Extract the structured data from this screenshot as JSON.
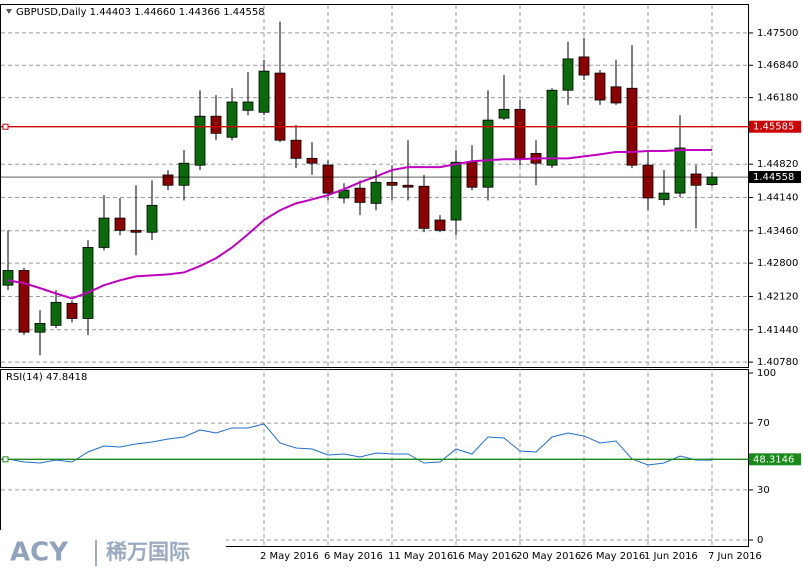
{
  "chart_data": [
    {
      "type": "candlestick",
      "title": "GBPUSD,Daily  1.44403 1.44660 1.44366 1.44558",
      "categories": [
        null,
        null,
        null,
        null,
        null,
        null,
        null,
        null,
        null,
        null,
        null,
        null,
        null,
        null,
        null,
        null,
        "2 May 2016",
        null,
        null,
        null,
        "6 May 2016",
        null,
        null,
        null,
        "11 May 2016",
        null,
        null,
        null,
        "16 May 2016",
        null,
        null,
        null,
        "20 May 2016",
        null,
        null,
        null,
        "26 May 2016",
        null,
        null,
        null,
        "1 Jun 2016",
        null,
        null,
        null,
        "7 Jun 2016"
      ],
      "open": [
        1.4235,
        1.4265,
        1.4139,
        1.4153,
        1.4198,
        1.4167,
        1.4312,
        1.4372,
        1.4347,
        1.4343,
        1.446,
        1.4439,
        1.448,
        1.458,
        1.4537,
        1.4592,
        1.4588,
        1.4668,
        1.4531,
        1.4494,
        1.448,
        1.4413,
        1.4433,
        1.4402,
        1.4445,
        1.4439,
        1.4437,
        1.4368,
        1.4368,
        1.4486,
        1.4435,
        1.4576,
        1.4594,
        1.4504,
        1.448,
        1.4633,
        1.4701,
        1.4668,
        1.464,
        1.4637,
        1.448,
        1.441,
        1.4423,
        1.4462,
        1.44403
      ],
      "high": [
        1.4347,
        1.427,
        1.4184,
        1.4225,
        1.4204,
        1.4327,
        1.4419,
        1.4413,
        1.4439,
        1.4449,
        1.447,
        1.4511,
        1.4633,
        1.4623,
        1.4637,
        1.467,
        1.4695,
        1.4773,
        1.4562,
        1.4527,
        1.449,
        1.4443,
        1.4449,
        1.447,
        1.448,
        1.4531,
        1.446,
        1.4378,
        1.4511,
        1.4521,
        1.4633,
        1.4664,
        1.4613,
        1.4531,
        1.4637,
        1.4732,
        1.474,
        1.4674,
        1.4695,
        1.4725,
        1.4511,
        1.447,
        1.4582,
        1.448,
        1.4466
      ],
      "low": [
        1.4225,
        1.4133,
        1.4092,
        1.4147,
        1.4159,
        1.4133,
        1.4306,
        1.4337,
        1.4296,
        1.4327,
        1.4429,
        1.4408,
        1.447,
        1.4531,
        1.4531,
        1.4582,
        1.4582,
        1.4527,
        1.4474,
        1.446,
        1.4408,
        1.4402,
        1.4378,
        1.4388,
        1.4408,
        1.4408,
        1.4343,
        1.4343,
        1.4337,
        1.4429,
        1.4408,
        1.4572,
        1.448,
        1.4439,
        1.4474,
        1.4603,
        1.4654,
        1.4603,
        1.4603,
        1.4474,
        1.4388,
        1.4398,
        1.4415,
        1.4351,
        1.44366
      ],
      "close": [
        1.4265,
        1.4139,
        1.4157,
        1.42,
        1.4167,
        1.4312,
        1.4372,
        1.4347,
        1.4343,
        1.4398,
        1.4439,
        1.4484,
        1.458,
        1.4545,
        1.4609,
        1.4609,
        1.4672,
        1.4531,
        1.4494,
        1.4484,
        1.4423,
        1.4429,
        1.4404,
        1.4445,
        1.4439,
        1.4435,
        1.4351,
        1.4347,
        1.4486,
        1.4435,
        1.4572,
        1.4594,
        1.4494,
        1.4484,
        1.4633,
        1.4697,
        1.4664,
        1.4613,
        1.4607,
        1.448,
        1.4413,
        1.4423,
        1.4515,
        1.4439,
        1.44558
      ],
      "up_color": "#0b6b0b",
      "down_color": "#8b0000",
      "series": [
        {
          "color": "#c000c0",
          "values": [
            1.4245,
            1.4239,
            1.4229,
            1.4218,
            1.4208,
            1.422,
            1.4235,
            1.4245,
            1.4253,
            1.4255,
            1.4257,
            1.4261,
            1.4274,
            1.429,
            1.4312,
            1.4339,
            1.4368,
            1.4388,
            1.4402,
            1.441,
            1.4419,
            1.4431,
            1.4445,
            1.4457,
            1.447,
            1.4476,
            1.4476,
            1.4476,
            1.4482,
            1.4488,
            1.449,
            1.4492,
            1.4492,
            1.4494,
            1.4494,
            1.4494,
            1.4498,
            1.4502,
            1.4507,
            1.4507,
            1.4509,
            1.4509,
            1.4511,
            1.4511,
            1.4511
          ]
        }
      ],
      "hlines": [
        {
          "value": 1.45585,
          "color": "#cc0000"
        },
        {
          "value": 1.44558,
          "color": "#000000"
        }
      ],
      "ylim": [
        1.407,
        1.4807
      ],
      "yticks": [
        {
          "value": 1.475,
          "label": "1.47500"
        },
        {
          "value": 1.4684,
          "label": "1.46840"
        },
        {
          "value": 1.4618,
          "label": "1.46180"
        },
        {
          "value": 1.4482,
          "label": "1.44820"
        },
        {
          "value": 1.4414,
          "label": "1.44140"
        },
        {
          "value": 1.4346,
          "label": "1.43460"
        },
        {
          "value": 1.428,
          "label": "1.42800"
        },
        {
          "value": 1.4212,
          "label": "1.42120"
        },
        {
          "value": 1.4144,
          "label": "1.41440"
        },
        {
          "value": 1.4078,
          "label": "1.40780"
        }
      ],
      "grid": true
    },
    {
      "type": "line",
      "title": "RSI(14) 47.8418",
      "series": [
        {
          "color": "#1e6fc8",
          "values": [
            48.5,
            46.7,
            46.1,
            47.9,
            46.7,
            52.7,
            56.3,
            55.7,
            57.5,
            58.7,
            60.5,
            61.7,
            65.9,
            64.1,
            67.1,
            67.1,
            69.5,
            58.1,
            55.1,
            54.5,
            50.9,
            51.5,
            49.7,
            52.1,
            51.5,
            51.5,
            46.1,
            46.7,
            54.5,
            51.5,
            61.7,
            61.1,
            53.3,
            52.7,
            61.7,
            64.1,
            62.3,
            58.1,
            59.3,
            48.5,
            44.9,
            46.1,
            50.3,
            47.9,
            47.8
          ]
        }
      ],
      "hlines": [
        {
          "value": 48.3146,
          "color": "#1a8a1a"
        }
      ],
      "ylim": [
        0,
        100
      ],
      "yticks": [
        0,
        30,
        70,
        100
      ],
      "grid": true
    }
  ],
  "watermark": {
    "brand": "ACY",
    "name": "稀万国际"
  }
}
